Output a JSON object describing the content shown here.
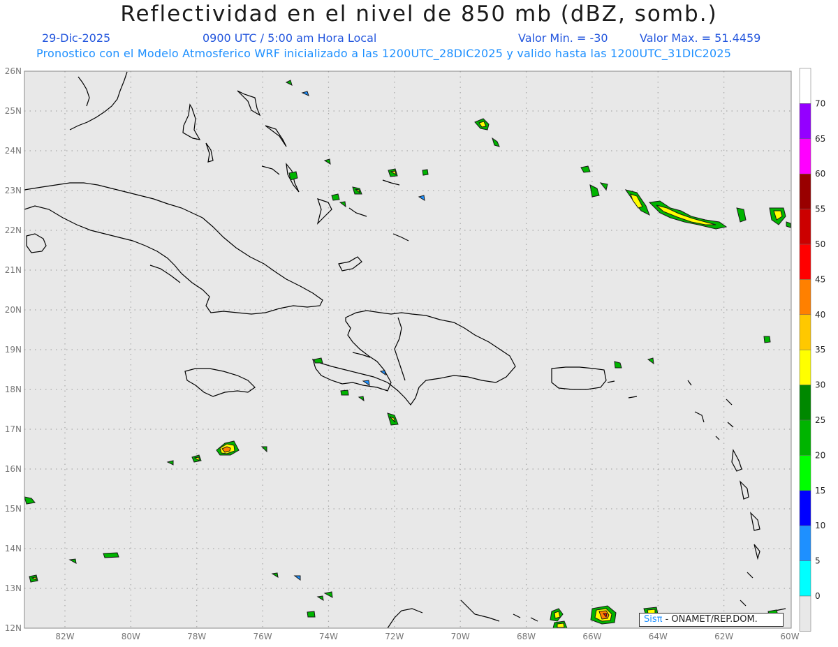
{
  "header": {
    "title": "Reflectividad en el nivel de 850 mb (dBZ, somb.)",
    "date": "29-Dic-2025",
    "time": "0900 UTC / 5:00 am Hora Local",
    "min_label": "Valor Min. = -30",
    "max_label": "Valor Max. = 51.4459",
    "model_line": "Pronostico con el Modelo Atmosferico WRF inicializado a las 1200UTC_28DIC2025 y valido hasta las  1200UTC_31DIC2025"
  },
  "map": {
    "lat_labels": [
      "26N",
      "25N",
      "24N",
      "23N",
      "22N",
      "21N",
      "20N",
      "19N",
      "18N",
      "17N",
      "16N",
      "15N",
      "14N",
      "13N",
      "12N"
    ],
    "lon_labels": [
      "82W",
      "80W",
      "78W",
      "76W",
      "74W",
      "72W",
      "70W",
      "68W",
      "66W",
      "64W",
      "62W",
      "60W"
    ],
    "background_color": "#e8e8e8"
  },
  "colorbar": {
    "labels": [
      "70",
      "65",
      "60",
      "55",
      "50",
      "45",
      "40",
      "35",
      "30",
      "25",
      "20",
      "15",
      "10",
      "5",
      "0"
    ],
    "colors": [
      "#ffffff",
      "#9400ff",
      "#ff00ff",
      "#990000",
      "#cc0000",
      "#ff0000",
      "#ff8000",
      "#ffc800",
      "#ffff00",
      "#008800",
      "#00b400",
      "#00ff00",
      "#0000ff",
      "#1e90ff",
      "#00ffff",
      "#e8e8e8"
    ]
  },
  "credit": {
    "logo": "Sisπ",
    "text": "- ONAMET/REP.DOM."
  }
}
